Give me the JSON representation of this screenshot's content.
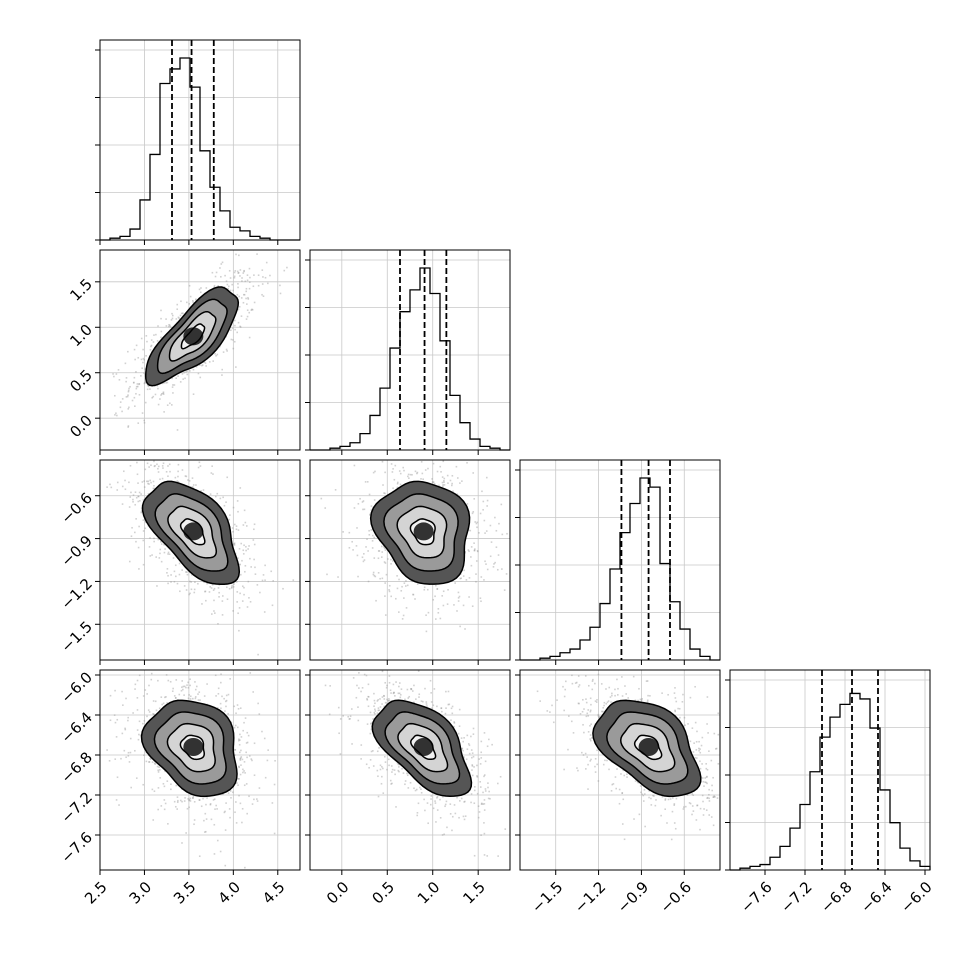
{
  "params": [
    {
      "lim": [
        2.5,
        4.75
      ],
      "ticks": [
        2.5,
        3.0,
        3.5,
        4.0,
        4.5
      ],
      "tick_labels": [
        "2.5",
        "3.0",
        "3.5",
        "4.0",
        "4.5"
      ],
      "mean": 3.55,
      "sd": 0.26
    },
    {
      "lim": [
        -0.35,
        1.85
      ],
      "ticks": [
        0.0,
        0.5,
        1.0,
        1.5
      ],
      "tick_labels": [
        "0.0",
        "0.5",
        "1.0",
        "1.5"
      ],
      "mean": 0.9,
      "sd": 0.26
    },
    {
      "lim": [
        -1.75,
        -0.35
      ],
      "ticks": [
        -1.5,
        -1.2,
        -0.9,
        -0.6
      ],
      "tick_labels": [
        "−1.5",
        "−1.2",
        "−0.9",
        "−0.6"
      ],
      "mean": -0.85,
      "sd": 0.18
    },
    {
      "lim": [
        -7.95,
        -5.95
      ],
      "ticks": [
        -7.6,
        -7.2,
        -6.8,
        -6.4,
        -6.0
      ],
      "tick_labels": [
        "−7.6",
        "−7.2",
        "−6.8",
        "−6.4",
        "−6.0"
      ],
      "mean": -6.72,
      "sd": 0.24
    }
  ],
  "chart_data": {
    "type": "corner",
    "n_params": 4,
    "correlations": [
      [
        1,
        0.75,
        -0.55,
        -0.25
      ],
      [
        0.75,
        1,
        -0.15,
        -0.55
      ],
      [
        -0.55,
        -0.15,
        1,
        -0.45
      ],
      [
        -0.25,
        -0.55,
        -0.45,
        1
      ]
    ],
    "quantiles": [
      [
        3.31,
        3.53,
        3.78
      ],
      [
        0.64,
        0.91,
        1.15
      ],
      [
        -1.04,
        -0.85,
        -0.7
      ],
      [
        -7.03,
        -6.73,
        -6.47
      ]
    ],
    "histograms": [
      {
        "x_min": 2.5,
        "x_max": 4.75,
        "counts": [
          0,
          1,
          2,
          6,
          22,
          47,
          86,
          94,
          100,
          84,
          49,
          29,
          16,
          7,
          5,
          2,
          1,
          0,
          0,
          0
        ]
      },
      {
        "x_min": -0.35,
        "x_max": 1.85,
        "counts": [
          0,
          0,
          1,
          2,
          4,
          9,
          19,
          34,
          56,
          76,
          88,
          100,
          86,
          60,
          30,
          15,
          6,
          2,
          1,
          0
        ]
      },
      {
        "x_min": -1.75,
        "x_max": -0.35,
        "counts": [
          0,
          0,
          1,
          2,
          4,
          6,
          11,
          18,
          31,
          50,
          70,
          86,
          100,
          95,
          53,
          32,
          17,
          6,
          2,
          0
        ]
      },
      {
        "x_min": -7.95,
        "x_max": -5.95,
        "counts": [
          0,
          1,
          2,
          3,
          7,
          13,
          23,
          36,
          54,
          73,
          84,
          91,
          97,
          94,
          78,
          44,
          26,
          12,
          5,
          2
        ]
      }
    ],
    "contour_levels": [
      0.5,
      1.0,
      1.5,
      2.0
    ],
    "grid": true,
    "xlabel": "",
    "ylabel": ""
  }
}
